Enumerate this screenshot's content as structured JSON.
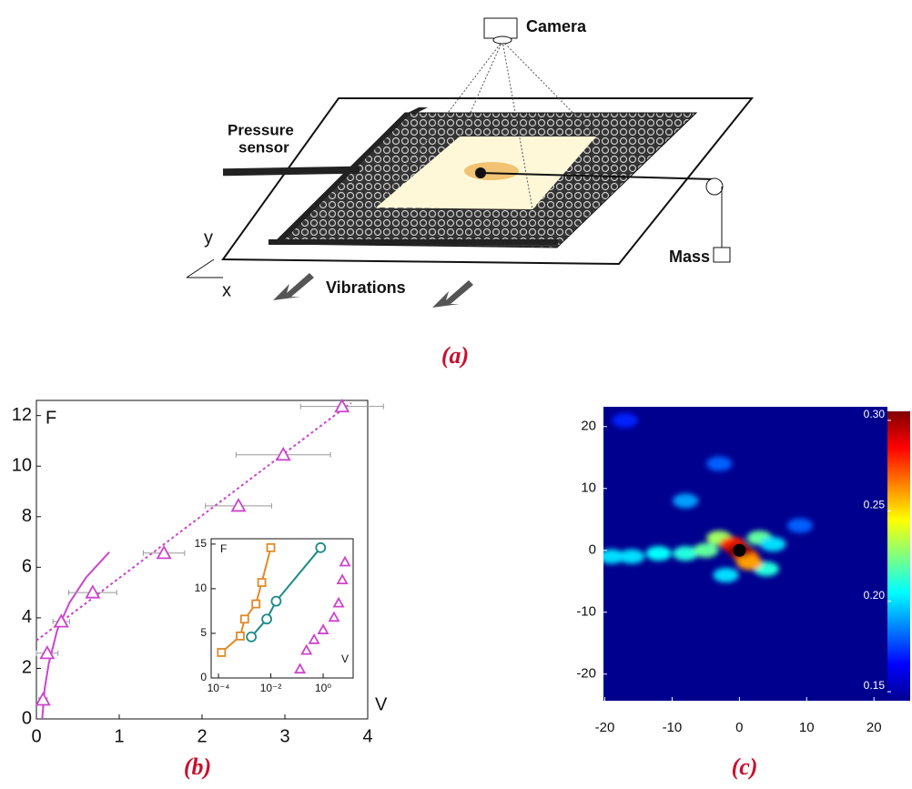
{
  "figure": {
    "panel_a": {
      "caption": "(a)",
      "camera": "Camera",
      "pressure_sensor": [
        "Pressure",
        "sensor"
      ],
      "mass": "Mass",
      "vibrations": "Vibrations",
      "axis_x": "x",
      "axis_y": "y"
    }
  },
  "chart_data": [
    {
      "type": "scatter",
      "caption": "(b)",
      "ylabel": "F",
      "xlabel": "V",
      "xlim": [
        0,
        4
      ],
      "ylim": [
        0,
        12.6
      ],
      "xticks": [
        0,
        1,
        2,
        3,
        4
      ],
      "yticks": [
        0,
        2,
        4,
        6,
        8,
        10,
        12
      ],
      "series": [
        {
          "color": "#cc44cc",
          "marker": "triangle",
          "x": [
            0.08,
            0.13,
            0.3,
            0.68,
            1.54,
            2.44,
            2.98,
            3.69
          ],
          "values": [
            0.76,
            2.6,
            3.85,
            5.0,
            6.56,
            8.43,
            10.45,
            12.36
          ],
          "x_err": [
            0.05,
            0.13,
            0.1,
            0.29,
            0.25,
            0.4,
            0.57,
            0.5
          ]
        }
      ],
      "fits": [
        {
          "color": "#cc44cc",
          "style": "dashed",
          "x": [
            0,
            3.8
          ],
          "values": [
            3.1,
            12.5
          ]
        },
        {
          "color": "#cc44cc",
          "style": "solid",
          "x": [
            0.07,
            0.1,
            0.15,
            0.25,
            0.4,
            0.6,
            0.88
          ],
          "values": [
            0,
            1.2,
            2.2,
            3.5,
            4.6,
            5.6,
            6.6
          ]
        }
      ]
    },
    {
      "type": "scatter",
      "inset": true,
      "ylabel": "F",
      "xlabel": "V",
      "log_x": true,
      "xlim": [
        5.25e-05,
        14
      ],
      "ylim": [
        0,
        15.6
      ],
      "xticks": [
        {
          "value": 0.0001,
          "label": "10⁻⁴"
        },
        {
          "value": 0.01,
          "label": "10⁻²"
        },
        {
          "value": 1,
          "label": "10⁰"
        }
      ],
      "yticks": [
        0,
        5,
        10,
        15
      ],
      "series": [
        {
          "color": "#e08a2a",
          "marker": "square",
          "line": true,
          "x": [
            0.00013,
            0.00068,
            0.001,
            0.0027,
            0.0045,
            0.01
          ],
          "values": [
            2.86,
            4.7,
            6.6,
            8.3,
            10.7,
            14.6
          ]
        },
        {
          "color": "#1a8a8a",
          "marker": "circle",
          "line": true,
          "x": [
            0.0018,
            0.007,
            0.016,
            0.8
          ],
          "values": [
            4.6,
            6.6,
            8.6,
            14.6
          ]
        },
        {
          "color": "#cc44cc",
          "marker": "triangle",
          "line": false,
          "x": [
            0.13,
            0.23,
            0.45,
            1.0,
            2.6,
            3.9,
            5.4,
            6.8
          ],
          "values": [
            1.0,
            3.1,
            4.3,
            5.4,
            6.8,
            8.4,
            11,
            13
          ]
        }
      ]
    },
    {
      "type": "heatmap",
      "caption": "(c)",
      "xlim": [
        -20.2,
        22
      ],
      "ylim": [
        -24.3,
        23.2
      ],
      "xticks": [
        -20,
        -10,
        0,
        10,
        20
      ],
      "yticks": [
        -20,
        -10,
        0,
        10,
        20
      ],
      "clim": [
        0.145,
        0.305
      ],
      "cticks": [
        0.15,
        {
          "value": 0.2,
          "label": "0.20"
        },
        0.25,
        {
          "value": 0.3,
          "label": "0.30"
        }
      ],
      "x": [
        -19,
        -16,
        -12,
        -8,
        -5,
        -3,
        3,
        4,
        -2,
        5,
        -8,
        -3,
        -17,
        9,
        -1,
        1,
        1.5,
        0
      ],
      "y": [
        -1,
        -1,
        -0.5,
        -0.5,
        0,
        2,
        2,
        -3,
        -4,
        1,
        8,
        14,
        21,
        4,
        1,
        -1,
        -2,
        0
      ],
      "values": [
        0.2,
        0.2,
        0.205,
        0.21,
        0.22,
        0.23,
        0.22,
        0.21,
        0.2,
        0.2,
        0.19,
        0.18,
        0.17,
        0.18,
        0.28,
        0.27,
        0.26,
        0.3
      ]
    }
  ]
}
